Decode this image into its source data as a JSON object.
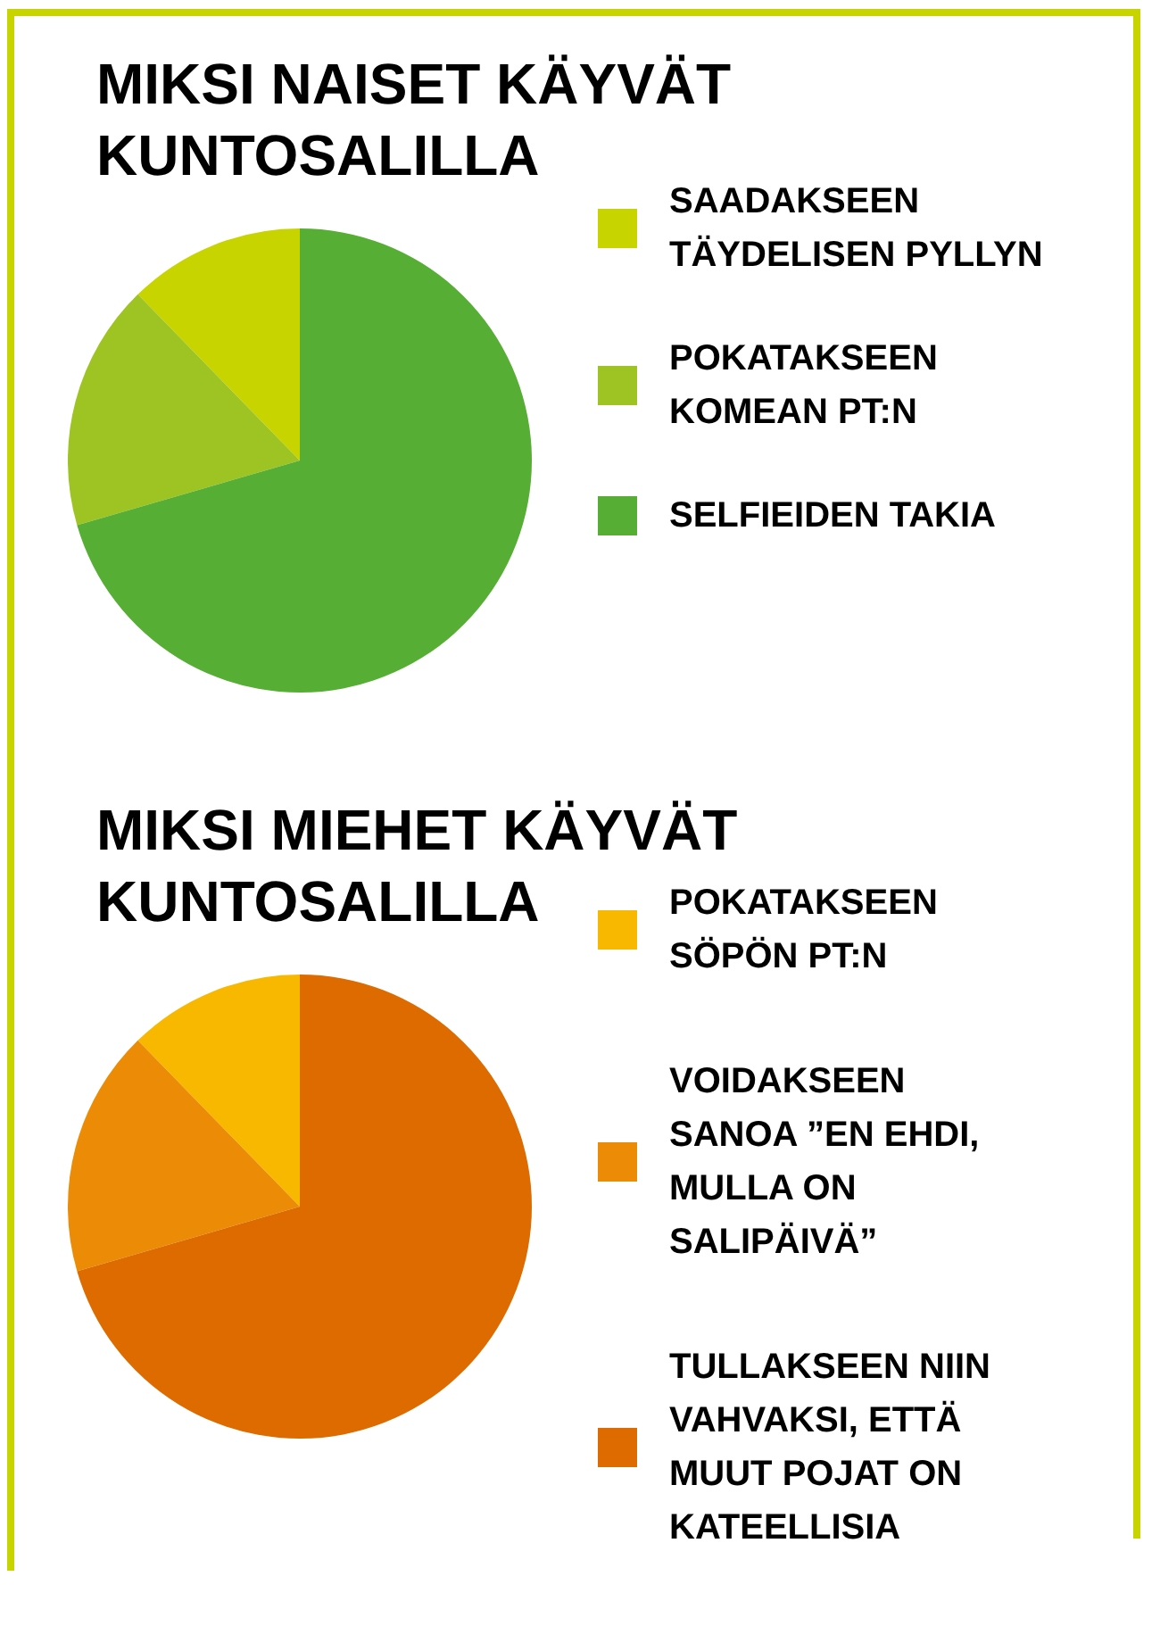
{
  "chart_data": [
    {
      "type": "pie",
      "title": "MIKSI NAISET KÄYVÄT\nKUNTOSALILLA",
      "categories": [
        "SAADAKSEEN\nTÄYDELISEN PYLLYN",
        "POKATAKSEEN\nKOMEAN PT:N",
        "SELFIEIDEN TAKIA"
      ],
      "values": [
        12.3,
        17.2,
        70.5
      ],
      "colors": [
        "#c8d400",
        "#9dc423",
        "#56ae35"
      ],
      "legend": "right"
    },
    {
      "type": "pie",
      "title": "MIKSI MIEHET KÄYVÄT\nKUNTOSALILLA",
      "categories": [
        "POKATAKSEEN\nSÖPÖN PT:N",
        "VOIDAKSEEN\nSANOA ”EN EHDI,\nMULLA ON\nSALIPÄIVÄ”",
        "TULLAKSEEN NIIN\nVAHVAKSI, ETTÄ\nMUUT POJAT ON\nKATEELLISIA"
      ],
      "values": [
        12.3,
        17.2,
        70.5
      ],
      "colors": [
        "#f9b800",
        "#ec8b05",
        "#dd6b00"
      ],
      "legend": "right"
    }
  ]
}
